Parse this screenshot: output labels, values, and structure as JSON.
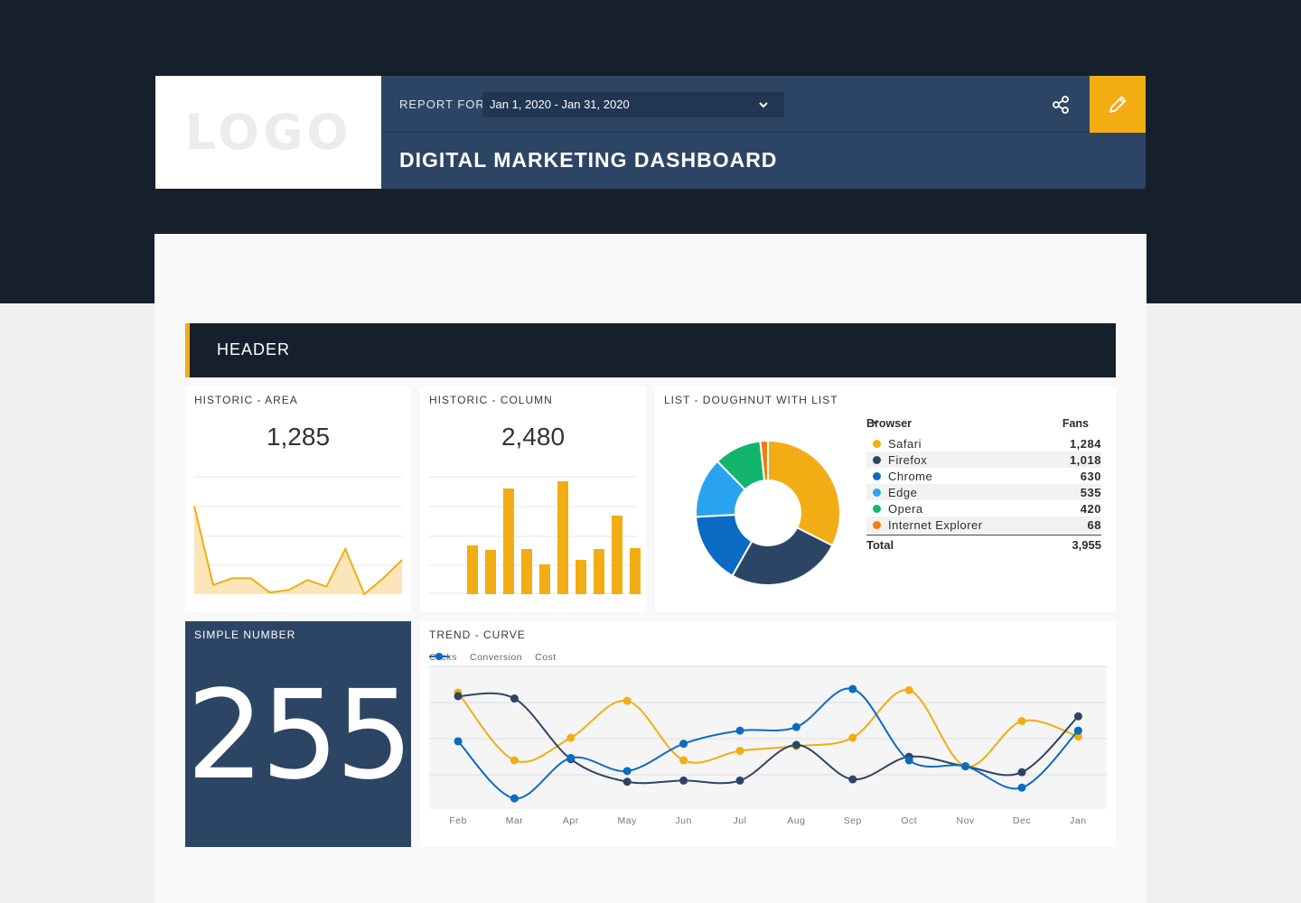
{
  "logo": {
    "text": "LOGO"
  },
  "header": {
    "report_for_label": "REPORT FOR",
    "date_range": "Jan 1, 2020 - Jan 31, 2020",
    "title": "DIGITAL MARKETING DASHBOARD",
    "share_icon": "share-icon",
    "edit_icon": "pencil-icon",
    "accent_color": "#f2ad14"
  },
  "section": {
    "title": "HEADER"
  },
  "widgets": {
    "area": {
      "title": "HISTORIC - AREA",
      "value": "1,285"
    },
    "column": {
      "title": "HISTORIC - COLUMN",
      "value": "2,480"
    },
    "doughnut": {
      "title": "LIST - DOUGHNUT WITH LIST",
      "col_browser": "Browser",
      "col_fans": "Fans",
      "rows": [
        {
          "name": "Safari",
          "value": "1,284",
          "color": "#f2ad14"
        },
        {
          "name": "Firefox",
          "value": "1,018",
          "color": "#2d4565"
        },
        {
          "name": "Chrome",
          "value": "630",
          "color": "#0b6bc4"
        },
        {
          "name": "Edge",
          "value": "535",
          "color": "#2aa3ee"
        },
        {
          "name": "Opera",
          "value": "420",
          "color": "#12b56b"
        },
        {
          "name": "Internet Explorer",
          "value": "68",
          "color": "#f57c12"
        }
      ],
      "total_label": "Total",
      "total_value": "3,955"
    },
    "simple": {
      "title": "SIMPLE NUMBER",
      "value": "255"
    },
    "trend": {
      "title": "TREND - CURVE"
    }
  },
  "chart_data": [
    {
      "type": "area",
      "values": [
        105,
        11,
        19,
        19,
        2,
        5,
        17,
        9,
        54,
        0,
        19,
        41
      ],
      "ylim": [
        0,
        140
      ],
      "color": "#f2ad14"
    },
    {
      "type": "bar",
      "values": [
        54,
        49,
        117,
        50,
        33,
        125,
        38,
        50,
        87,
        51
      ],
      "ylim": [
        0,
        130
      ],
      "color": "#f2ad14"
    },
    {
      "type": "pie",
      "categories": [
        "Safari",
        "Firefox",
        "Chrome",
        "Edge",
        "Opera",
        "Internet Explorer"
      ],
      "values": [
        1284,
        1018,
        630,
        535,
        420,
        68
      ],
      "colors": [
        "#f2ad14",
        "#2d4565",
        "#0b6bc4",
        "#2aa3ee",
        "#12b56b",
        "#f57c12"
      ]
    },
    {
      "type": "line",
      "categories": [
        "Feb",
        "Mar",
        "Apr",
        "May",
        "Jun",
        "Jul",
        "Aug",
        "Sep",
        "Oct",
        "Nov",
        "Dec",
        "Jan"
      ],
      "series": [
        {
          "name": "Clicks",
          "color": "#f2ad14",
          "values": [
            78,
            21,
            40,
            71,
            21,
            29,
            33,
            40,
            80,
            16,
            54,
            41
          ]
        },
        {
          "name": "Conversion",
          "color": "#2d4565",
          "values": [
            75,
            73,
            22,
            3,
            4,
            4,
            34,
            5,
            24,
            16,
            11,
            58
          ]
        },
        {
          "name": "Cost",
          "color": "#0b6bc4",
          "values": [
            37,
            -11,
            23,
            12,
            35,
            46,
            49,
            81,
            21,
            16,
            -2,
            46
          ]
        }
      ],
      "ylim": [
        -20,
        100
      ]
    }
  ]
}
